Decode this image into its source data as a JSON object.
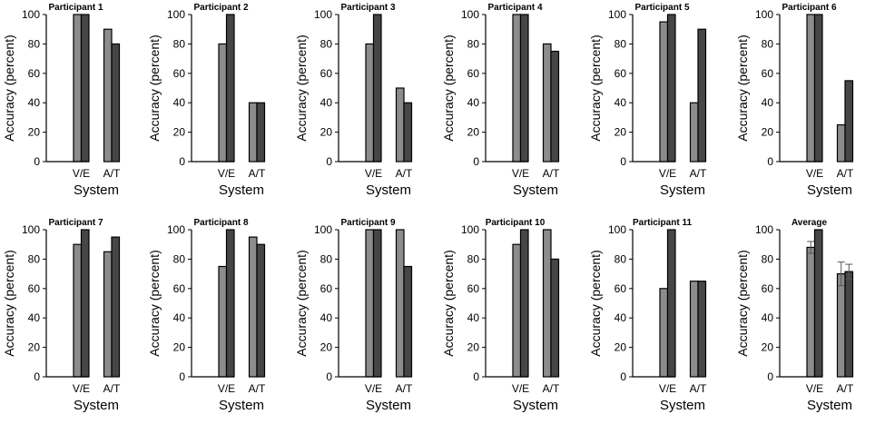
{
  "figure": {
    "colors": {
      "light": "#8c8c8c",
      "dark": "#464646",
      "axis": "#000000"
    }
  },
  "chart_data": [
    {
      "type": "bar",
      "title": "Participant 1",
      "xlabel": "System",
      "ylabel": "Accuracy (percent)",
      "categories": [
        "V/E",
        "A/T"
      ],
      "ylim": [
        0,
        100
      ],
      "yticks": [
        0,
        20,
        40,
        60,
        80,
        100
      ],
      "series": [
        {
          "name": "light",
          "values": [
            100,
            90
          ]
        },
        {
          "name": "dark",
          "values": [
            100,
            80
          ]
        }
      ]
    },
    {
      "type": "bar",
      "title": "Participant 2",
      "xlabel": "System",
      "ylabel": "Accuracy (percent)",
      "categories": [
        "V/E",
        "A/T"
      ],
      "ylim": [
        0,
        100
      ],
      "yticks": [
        0,
        20,
        40,
        60,
        80,
        100
      ],
      "series": [
        {
          "name": "light",
          "values": [
            80,
            40
          ]
        },
        {
          "name": "dark",
          "values": [
            100,
            40
          ]
        }
      ]
    },
    {
      "type": "bar",
      "title": "Participant 3",
      "xlabel": "System",
      "ylabel": "Accuracy (percent)",
      "categories": [
        "V/E",
        "A/T"
      ],
      "ylim": [
        0,
        100
      ],
      "yticks": [
        0,
        20,
        40,
        60,
        80,
        100
      ],
      "series": [
        {
          "name": "light",
          "values": [
            80,
            50
          ]
        },
        {
          "name": "dark",
          "values": [
            100,
            40
          ]
        }
      ]
    },
    {
      "type": "bar",
      "title": "Participant 4",
      "xlabel": "System",
      "ylabel": "Accuracy (percent)",
      "categories": [
        "V/E",
        "A/T"
      ],
      "ylim": [
        0,
        100
      ],
      "yticks": [
        0,
        20,
        40,
        60,
        80,
        100
      ],
      "series": [
        {
          "name": "light",
          "values": [
            100,
            80
          ]
        },
        {
          "name": "dark",
          "values": [
            100,
            75
          ]
        }
      ]
    },
    {
      "type": "bar",
      "title": "Participant 5",
      "xlabel": "System",
      "ylabel": "Accuracy (percent)",
      "categories": [
        "V/E",
        "A/T"
      ],
      "ylim": [
        0,
        100
      ],
      "yticks": [
        0,
        20,
        40,
        60,
        80,
        100
      ],
      "series": [
        {
          "name": "light",
          "values": [
            95,
            40
          ]
        },
        {
          "name": "dark",
          "values": [
            100,
            90
          ]
        }
      ]
    },
    {
      "type": "bar",
      "title": "Participant 6",
      "xlabel": "System",
      "ylabel": "Accuracy (percent)",
      "categories": [
        "V/E",
        "A/T"
      ],
      "ylim": [
        0,
        100
      ],
      "yticks": [
        0,
        20,
        40,
        60,
        80,
        100
      ],
      "series": [
        {
          "name": "light",
          "values": [
            100,
            25
          ]
        },
        {
          "name": "dark",
          "values": [
            100,
            55
          ]
        }
      ]
    },
    {
      "type": "bar",
      "title": "Participant 7",
      "xlabel": "System",
      "ylabel": "Accuracy (percent)",
      "categories": [
        "V/E",
        "A/T"
      ],
      "ylim": [
        0,
        100
      ],
      "yticks": [
        0,
        20,
        40,
        60,
        80,
        100
      ],
      "series": [
        {
          "name": "light",
          "values": [
            90,
            85
          ]
        },
        {
          "name": "dark",
          "values": [
            100,
            95
          ]
        }
      ]
    },
    {
      "type": "bar",
      "title": "Participant 8",
      "xlabel": "System",
      "ylabel": "Accuracy (percent)",
      "categories": [
        "V/E",
        "A/T"
      ],
      "ylim": [
        0,
        100
      ],
      "yticks": [
        0,
        20,
        40,
        60,
        80,
        100
      ],
      "series": [
        {
          "name": "light",
          "values": [
            75,
            95
          ]
        },
        {
          "name": "dark",
          "values": [
            100,
            90
          ]
        }
      ]
    },
    {
      "type": "bar",
      "title": "Participant 9",
      "xlabel": "System",
      "ylabel": "Accuracy (percent)",
      "categories": [
        "V/E",
        "A/T"
      ],
      "ylim": [
        0,
        100
      ],
      "yticks": [
        0,
        20,
        40,
        60,
        80,
        100
      ],
      "series": [
        {
          "name": "light",
          "values": [
            100,
            100
          ]
        },
        {
          "name": "dark",
          "values": [
            100,
            75
          ]
        }
      ]
    },
    {
      "type": "bar",
      "title": "Participant 10",
      "xlabel": "System",
      "ylabel": "Accuracy (percent)",
      "categories": [
        "V/E",
        "A/T"
      ],
      "ylim": [
        0,
        100
      ],
      "yticks": [
        0,
        20,
        40,
        60,
        80,
        100
      ],
      "series": [
        {
          "name": "light",
          "values": [
            90,
            100
          ]
        },
        {
          "name": "dark",
          "values": [
            100,
            80
          ]
        }
      ]
    },
    {
      "type": "bar",
      "title": "Participant 11",
      "xlabel": "System",
      "ylabel": "Accuracy (percent)",
      "categories": [
        "V/E",
        "A/T"
      ],
      "ylim": [
        0,
        100
      ],
      "yticks": [
        0,
        20,
        40,
        60,
        80,
        100
      ],
      "series": [
        {
          "name": "light",
          "values": [
            60,
            65
          ]
        },
        {
          "name": "dark",
          "values": [
            100,
            65
          ]
        }
      ]
    },
    {
      "type": "bar",
      "title": "Average",
      "xlabel": "System",
      "ylabel": "Accuracy (percent)",
      "categories": [
        "V/E",
        "A/T"
      ],
      "ylim": [
        0,
        100
      ],
      "yticks": [
        0,
        20,
        40,
        60,
        80,
        100
      ],
      "series": [
        {
          "name": "light",
          "values": [
            88,
            70
          ],
          "errors": [
            4,
            8
          ]
        },
        {
          "name": "dark",
          "values": [
            100,
            71.5
          ],
          "errors": [
            0,
            5
          ]
        }
      ]
    }
  ]
}
